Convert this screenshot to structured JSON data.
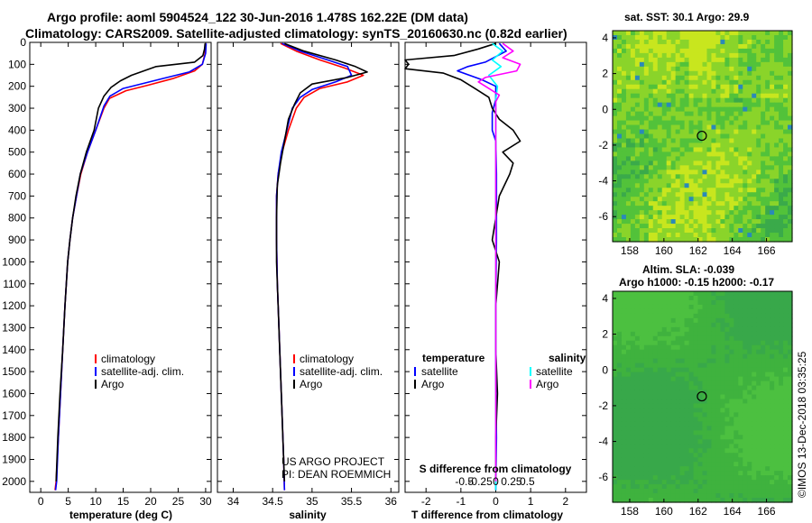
{
  "titles": {
    "line1": "Argo profile: aoml 5904524_122 30-Jun-2016 1.478S 162.22E (DM data)",
    "line2": "Climatology: CARS2009. Satellite-adjusted climatology: synTS_20160630.nc (0.82d earlier)",
    "sst_title": "sat. SST: 30.1 Argo: 29.9",
    "sla_title1": "Altim. SLA: -0.039",
    "sla_title2": "Argo h1000: -0.15 h2000: -0.17"
  },
  "credit_line1": "US ARGO PROJECT",
  "credit_line2": "PI: DEAN ROEMMICH",
  "watermark": "©IMOS 13-Dec-2018 03:35:25",
  "colors": {
    "climatology": "#ff0000",
    "satellite": "#0000ff",
    "argo": "#000000",
    "sal_satellite": "#00ffff",
    "sal_argo": "#ff00ff"
  },
  "chart_data": [
    {
      "type": "line",
      "xlabel": "temperature (deg C)",
      "xlim": [
        -2,
        31
      ],
      "xticks": [
        0,
        5,
        10,
        15,
        20,
        25,
        30
      ],
      "ylim": [
        0,
        2050
      ],
      "yticks": [
        0,
        100,
        200,
        300,
        400,
        500,
        600,
        700,
        800,
        900,
        1000,
        1100,
        1200,
        1300,
        1400,
        1500,
        1600,
        1700,
        1800,
        1900,
        2000
      ],
      "legend": [
        "climatology",
        "satellite-adj. clim.",
        "Argo"
      ],
      "legend_position": "lower-right",
      "series": [
        {
          "name": "climatology",
          "color": "#ff0000",
          "points": [
            [
              30,
              5
            ],
            [
              29.9,
              50
            ],
            [
              29.4,
              100
            ],
            [
              28,
              130
            ],
            [
              24,
              165
            ],
            [
              19.5,
              195
            ],
            [
              15.5,
              220
            ],
            [
              12.5,
              255
            ],
            [
              11.5,
              300
            ],
            [
              10,
              400
            ],
            [
              8.5,
              500
            ],
            [
              7.3,
              600
            ],
            [
              6.5,
              700
            ],
            [
              5.8,
              800
            ],
            [
              5.3,
              900
            ],
            [
              4.9,
              1000
            ],
            [
              4.4,
              1200
            ],
            [
              4,
              1400
            ],
            [
              3.6,
              1600
            ],
            [
              3.2,
              1800
            ],
            [
              2.8,
              2000
            ],
            [
              2.6,
              2040
            ]
          ]
        },
        {
          "name": "satellite-adj. clim.",
          "color": "#0000ff",
          "points": [
            [
              30.1,
              5
            ],
            [
              30,
              50
            ],
            [
              29.4,
              100
            ],
            [
              27,
              135
            ],
            [
              23,
              160
            ],
            [
              19,
              185
            ],
            [
              15,
              210
            ],
            [
              12.6,
              245
            ],
            [
              11.5,
              290
            ],
            [
              10,
              400
            ],
            [
              8.5,
              500
            ],
            [
              7.2,
              600
            ],
            [
              6.5,
              700
            ],
            [
              5.8,
              800
            ],
            [
              5.3,
              900
            ],
            [
              4.9,
              1000
            ],
            [
              4.4,
              1200
            ],
            [
              4,
              1400
            ],
            [
              3.6,
              1600
            ],
            [
              3.2,
              1800
            ],
            [
              2.9,
              2000
            ],
            [
              2.7,
              2040
            ]
          ]
        },
        {
          "name": "Argo",
          "color": "#000000",
          "points": [
            [
              29.9,
              5
            ],
            [
              29.8,
              30
            ],
            [
              29.5,
              60
            ],
            [
              28,
              90
            ],
            [
              21,
              110
            ],
            [
              16.5,
              150
            ],
            [
              14.5,
              175
            ],
            [
              12.8,
              205
            ],
            [
              11.5,
              245
            ],
            [
              10.5,
              300
            ],
            [
              9.7,
              400
            ],
            [
              8.3,
              500
            ],
            [
              7.2,
              600
            ],
            [
              6.4,
              700
            ],
            [
              5.8,
              800
            ],
            [
              5.3,
              900
            ],
            [
              4.9,
              1000
            ],
            [
              4.4,
              1200
            ],
            [
              4,
              1400
            ],
            [
              3.5,
              1600
            ],
            [
              3.1,
              1800
            ],
            [
              2.8,
              2000
            ]
          ]
        }
      ]
    },
    {
      "type": "line",
      "xlabel": "salinity",
      "xlim": [
        33.8,
        36.1
      ],
      "xticks": [
        34,
        34.5,
        35,
        35.5,
        36
      ],
      "ylim": [
        0,
        2050
      ],
      "legend": [
        "climatology",
        "satellite-adj. clim.",
        "Argo"
      ],
      "legend_position": "lower-right",
      "series": [
        {
          "name": "climatology",
          "color": "#ff0000",
          "points": [
            [
              34.6,
              5
            ],
            [
              34.8,
              40
            ],
            [
              35.1,
              80
            ],
            [
              35.4,
              115
            ],
            [
              35.65,
              150
            ],
            [
              35.45,
              180
            ],
            [
              35.1,
              210
            ],
            [
              34.9,
              250
            ],
            [
              34.8,
              300
            ],
            [
              34.7,
              400
            ],
            [
              34.62,
              500
            ],
            [
              34.57,
              600
            ],
            [
              34.55,
              700
            ],
            [
              34.55,
              900
            ],
            [
              34.56,
              1100
            ],
            [
              34.58,
              1300
            ],
            [
              34.6,
              1500
            ],
            [
              34.62,
              1700
            ],
            [
              34.64,
              1900
            ],
            [
              34.65,
              2040
            ]
          ]
        },
        {
          "name": "satellite-adj. clim.",
          "color": "#0000ff",
          "points": [
            [
              34.62,
              5
            ],
            [
              34.85,
              40
            ],
            [
              35.2,
              80
            ],
            [
              35.45,
              110
            ],
            [
              35.5,
              150
            ],
            [
              35.3,
              180
            ],
            [
              35.0,
              215
            ],
            [
              34.85,
              250
            ],
            [
              34.75,
              300
            ],
            [
              34.68,
              400
            ],
            [
              34.61,
              500
            ],
            [
              34.57,
              600
            ],
            [
              34.55,
              700
            ],
            [
              34.55,
              900
            ],
            [
              34.56,
              1100
            ],
            [
              34.58,
              1300
            ],
            [
              34.6,
              1500
            ],
            [
              34.62,
              1700
            ],
            [
              34.64,
              1900
            ],
            [
              34.65,
              2040
            ]
          ]
        },
        {
          "name": "Argo",
          "color": "#000000",
          "points": [
            [
              34.65,
              5
            ],
            [
              34.9,
              40
            ],
            [
              35.3,
              80
            ],
            [
              35.55,
              110
            ],
            [
              35.7,
              135
            ],
            [
              35.45,
              160
            ],
            [
              35.0,
              190
            ],
            [
              34.85,
              230
            ],
            [
              34.78,
              280
            ],
            [
              34.7,
              350
            ],
            [
              34.65,
              450
            ],
            [
              34.6,
              550
            ],
            [
              34.56,
              650
            ],
            [
              34.55,
              800
            ],
            [
              34.55,
              1000
            ],
            [
              34.57,
              1200
            ],
            [
              34.59,
              1400
            ],
            [
              34.61,
              1600
            ],
            [
              34.63,
              1800
            ],
            [
              34.65,
              2000
            ]
          ]
        }
      ]
    },
    {
      "type": "line",
      "xlabel": "T difference from climatology",
      "xlim": [
        -2.6,
        2.6
      ],
      "xticks": [
        -2,
        -1,
        0,
        1,
        2
      ],
      "top_label": "S difference from climatology",
      "top_ticks": [
        "-0.5",
        "-0.25",
        "0",
        "0.25",
        "0.5"
      ],
      "top_tick_values": [
        -0.5,
        -0.25,
        0,
        0.25,
        0.5
      ],
      "ylim": [
        0,
        2050
      ],
      "legend_left_title": "temperature",
      "legend_right_title": "salinity",
      "legend_left": [
        "satellite",
        "Argo"
      ],
      "legend_right": [
        "satellite",
        "Argo"
      ],
      "series": [
        {
          "name": "temperature satellite",
          "color": "#0000ff",
          "points": [
            [
              0.1,
              5
            ],
            [
              0.3,
              40
            ],
            [
              -0.3,
              90
            ],
            [
              -0.8,
              110
            ],
            [
              -1.1,
              130
            ],
            [
              -0.4,
              170
            ],
            [
              0,
              200
            ],
            [
              0,
              260
            ],
            [
              -0.1,
              320
            ],
            [
              -0.1,
              400
            ],
            [
              0,
              450
            ],
            [
              0.02,
              600
            ],
            [
              0.02,
              900
            ],
            [
              0,
              1200
            ],
            [
              0,
              1500
            ],
            [
              0.02,
              1800
            ],
            [
              0,
              2040
            ]
          ]
        },
        {
          "name": "temperature Argo",
          "color": "#000000",
          "points": [
            [
              0,
              5
            ],
            [
              -0.5,
              30
            ],
            [
              -1.2,
              60
            ],
            [
              -2.6,
              80
            ],
            [
              -2.5,
              100
            ],
            [
              -2.6,
              120
            ],
            [
              -1.5,
              140
            ],
            [
              -1.0,
              170
            ],
            [
              -0.6,
              210
            ],
            [
              -0.2,
              250
            ],
            [
              -0.1,
              300
            ],
            [
              0.1,
              350
            ],
            [
              0.5,
              400
            ],
            [
              0.7,
              450
            ],
            [
              0.2,
              500
            ],
            [
              0.5,
              550
            ],
            [
              0.4,
              600
            ],
            [
              0.1,
              700
            ],
            [
              0,
              800
            ],
            [
              -0.1,
              900
            ],
            [
              0.1,
              1000
            ],
            [
              0,
              1200
            ],
            [
              0,
              1400
            ],
            [
              0.05,
              1600
            ],
            [
              0,
              1800
            ],
            [
              0,
              2000
            ]
          ]
        },
        {
          "name": "salinity satellite",
          "color": "#00ffff",
          "points": [
            [
              -0.1,
              5
            ],
            [
              0.2,
              40
            ],
            [
              -0.1,
              80
            ],
            [
              0.15,
              110
            ],
            [
              -0.2,
              150
            ],
            [
              0.05,
              200
            ],
            [
              0,
              260
            ],
            [
              0,
              300
            ],
            [
              0,
              400
            ],
            [
              0,
              500
            ],
            [
              0,
              700
            ],
            [
              0,
              1000
            ],
            [
              0,
              1300
            ],
            [
              0,
              1600
            ],
            [
              0,
              1900
            ],
            [
              0,
              2040
            ]
          ]
        },
        {
          "name": "salinity Argo",
          "color": "#ff00ff",
          "points": [
            [
              0.2,
              5
            ],
            [
              0.5,
              40
            ],
            [
              0.2,
              70
            ],
            [
              0.7,
              100
            ],
            [
              0.6,
              130
            ],
            [
              -0.3,
              160
            ],
            [
              -0.5,
              180
            ],
            [
              -0.2,
              210
            ],
            [
              0.1,
              240
            ],
            [
              0,
              270
            ],
            [
              0,
              300
            ],
            [
              0,
              400
            ],
            [
              0,
              600
            ],
            [
              0,
              1000
            ],
            [
              0,
              1500
            ],
            [
              0,
              2000
            ]
          ]
        }
      ]
    },
    {
      "type": "heatmap",
      "xlim": [
        157,
        167.5
      ],
      "ylim": [
        -7.4,
        4.4
      ],
      "xticks": [
        158,
        160,
        162,
        164,
        166
      ],
      "yticks": [
        4,
        2,
        0,
        -2,
        -4,
        -6
      ],
      "marker": [
        162.22,
        -1.478
      ]
    },
    {
      "type": "heatmap",
      "xlim": [
        157,
        167.5
      ],
      "ylim": [
        -7.4,
        4.4
      ],
      "xticks": [
        158,
        160,
        162,
        164,
        166
      ],
      "yticks": [
        4,
        2,
        0,
        -2,
        -4,
        -6
      ],
      "marker": [
        162.22,
        -1.478
      ]
    }
  ]
}
